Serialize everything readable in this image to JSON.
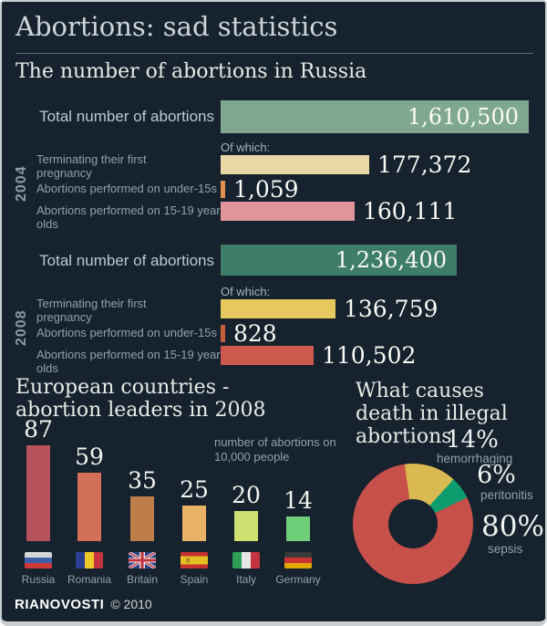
{
  "header": {
    "title": "Abortions: sad statistics"
  },
  "sections": {
    "russia": {
      "title": "The number of abortions in Russia"
    }
  },
  "footer": {
    "brand": "RIANOVOSTI",
    "copyright": "© 2010"
  },
  "colors": {
    "background": "#16222d",
    "frame": "#c9ced1"
  },
  "chart_data": [
    {
      "id": "russia_abortions_2004",
      "type": "bar",
      "year": "2004",
      "total_label": "Total number of abortions",
      "of_which_label": "Of which:",
      "total": {
        "value": 1610500,
        "display": "1,610,500",
        "color": "#80a890"
      },
      "categories": [
        "Terminating their first pregnancy",
        "Abortions performed on under-15s",
        "Abortions performed on 15-19 year olds"
      ],
      "values": [
        177372,
        1059,
        160111
      ],
      "value_displays": [
        "177,372",
        "1,059",
        "160,111"
      ],
      "bar_colors": [
        "#e9d8a6",
        "#e0914e",
        "#df959a"
      ]
    },
    {
      "id": "russia_abortions_2008",
      "type": "bar",
      "year": "2008",
      "total_label": "Total number of abortions",
      "of_which_label": "Of which:",
      "total": {
        "value": 1236400,
        "display": "1,236,400",
        "color": "#3e7d67"
      },
      "categories": [
        "Terminating their first pregnancy",
        "Abortions performed on under-15s",
        "Abortions performed on 15-19 year olds"
      ],
      "values": [
        136759,
        828,
        110502
      ],
      "value_displays": [
        "136,759",
        "828",
        "110,502"
      ],
      "bar_colors": [
        "#e6c95e",
        "#c75d3b",
        "#cd584e"
      ]
    },
    {
      "id": "europe_abortion_leaders_2008",
      "type": "bar",
      "title": "European countries - abortion leaders in 2008",
      "note": "number of abortions on 10,000 people",
      "categories": [
        "Russia",
        "Romania",
        "Britain",
        "Spain",
        "Italy",
        "Germany"
      ],
      "values": [
        87,
        59,
        35,
        25,
        20,
        14
      ],
      "bar_colors": [
        "#b7525c",
        "#d37059",
        "#bd7e49",
        "#e7b167",
        "#cfe070",
        "#6fce78"
      ]
    },
    {
      "id": "illegal_abortion_death_causes",
      "type": "pie",
      "title": "What causes death in illegal abortions",
      "categories": [
        "hemorrhaging",
        "peritonitis",
        "sepsis"
      ],
      "values": [
        14,
        6,
        80
      ],
      "value_displays": [
        "14%",
        "6%",
        "80%"
      ],
      "slice_colors": [
        "#d9ba52",
        "#0d9c6d",
        "#c8504b"
      ]
    }
  ]
}
